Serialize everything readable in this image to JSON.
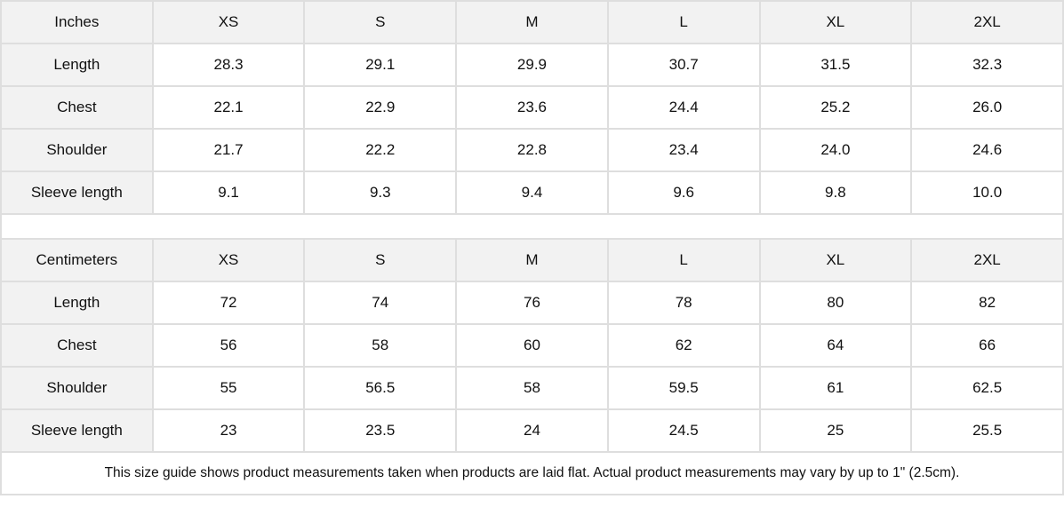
{
  "tables": [
    {
      "unit": "Inches",
      "sizes": [
        "XS",
        "S",
        "M",
        "L",
        "XL",
        "2XL"
      ],
      "rows": [
        {
          "label": "Length",
          "values": [
            "28.3",
            "29.1",
            "29.9",
            "30.7",
            "31.5",
            "32.3"
          ]
        },
        {
          "label": "Chest",
          "values": [
            "22.1",
            "22.9",
            "23.6",
            "24.4",
            "25.2",
            "26.0"
          ]
        },
        {
          "label": "Shoulder",
          "values": [
            "21.7",
            "22.2",
            "22.8",
            "23.4",
            "24.0",
            "24.6"
          ]
        },
        {
          "label": "Sleeve length",
          "values": [
            "9.1",
            "9.3",
            "9.4",
            "9.6",
            "9.8",
            "10.0"
          ]
        }
      ]
    },
    {
      "unit": "Centimeters",
      "sizes": [
        "XS",
        "S",
        "M",
        "L",
        "XL",
        "2XL"
      ],
      "rows": [
        {
          "label": "Length",
          "values": [
            "72",
            "74",
            "76",
            "78",
            "80",
            "82"
          ]
        },
        {
          "label": "Chest",
          "values": [
            "56",
            "58",
            "60",
            "62",
            "64",
            "66"
          ]
        },
        {
          "label": "Shoulder",
          "values": [
            "55",
            "56.5",
            "58",
            "59.5",
            "61",
            "62.5"
          ]
        },
        {
          "label": "Sleeve length",
          "values": [
            "23",
            "23.5",
            "24",
            "24.5",
            "25",
            "25.5"
          ]
        }
      ]
    }
  ],
  "note": "This size guide shows product measurements taken when products are laid flat.  Actual product measurements may vary by up to 1\" (2.5cm).",
  "colors": {
    "header_bg": "#f2f2f2",
    "border": "#dedede"
  }
}
